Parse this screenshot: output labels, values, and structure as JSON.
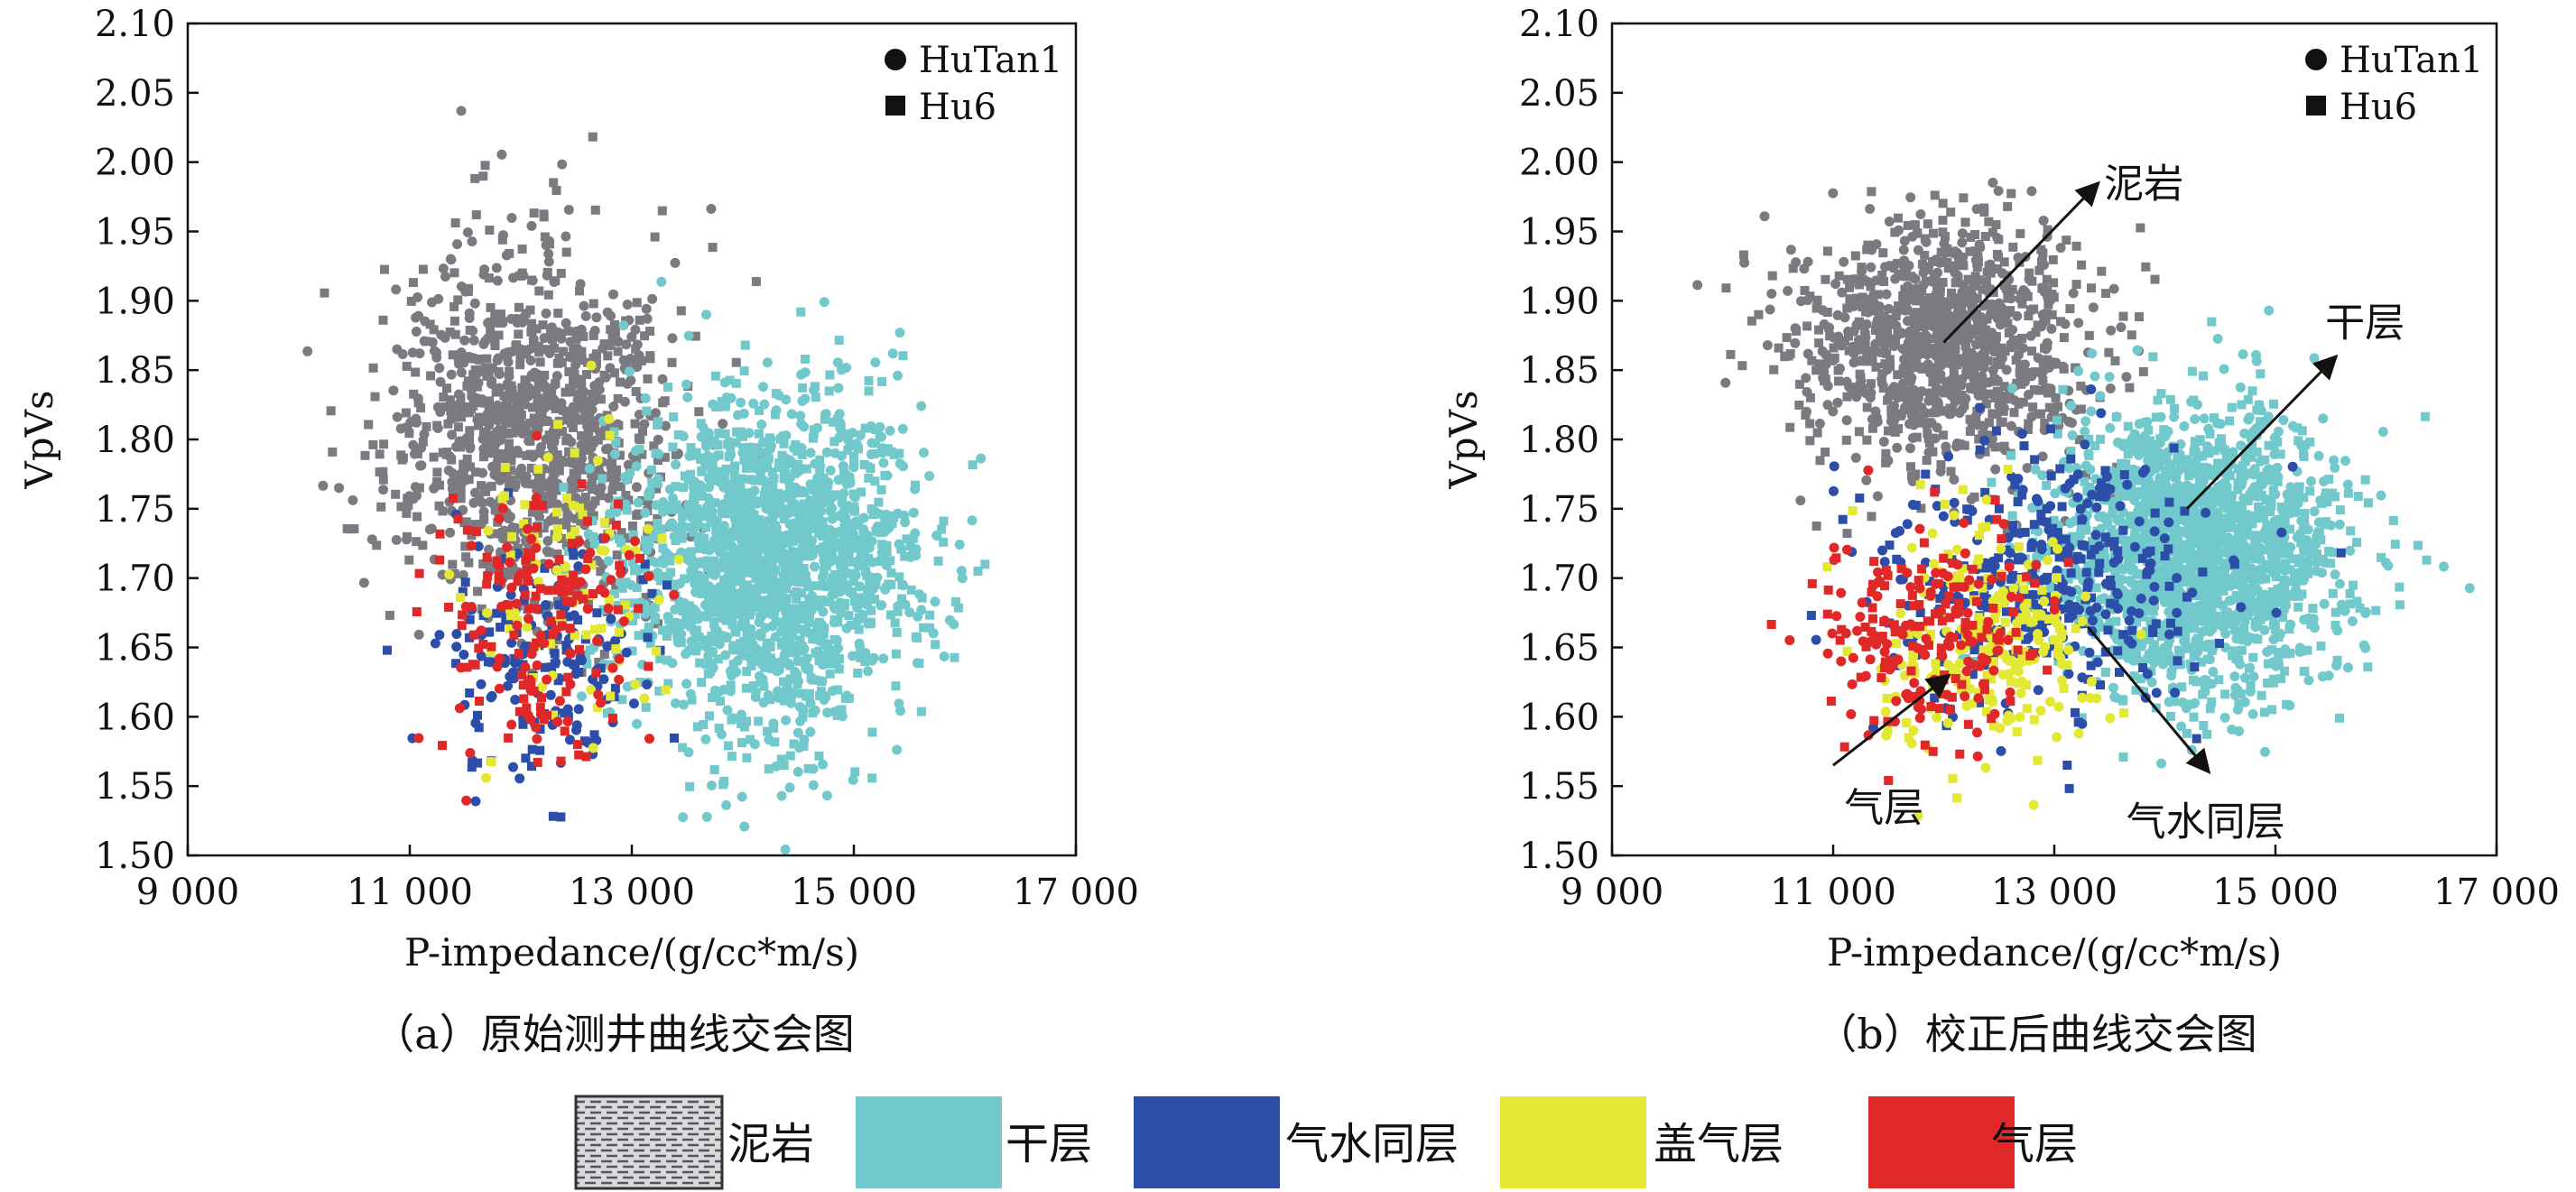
{
  "chart_data": [
    {
      "type": "scatter",
      "panel": "a",
      "caption": "（a）原始测井曲线交会图",
      "xlabel": "P-impedance/(g/cc*m/s)",
      "ylabel": "VpVs",
      "xlim": [
        9000,
        17000
      ],
      "ylim": [
        1.5,
        2.1
      ],
      "xticks": [
        "9 000",
        "11 000",
        "13 000",
        "15 000",
        "17 000"
      ],
      "yticks": [
        "1.50",
        "1.55",
        "1.60",
        "1.65",
        "1.70",
        "1.75",
        "1.80",
        "1.85",
        "1.90",
        "1.95",
        "2.00",
        "2.05",
        "2.10"
      ],
      "grid": false,
      "marker_legend": [
        "HuTan1",
        "Hu6"
      ],
      "marker_legend_position": "top-right",
      "clusters": [
        {
          "class": "泥岩",
          "color": "#7a7a80",
          "center": [
            12100,
            1.81
          ],
          "spread": [
            650,
            0.065
          ],
          "count": 1100
        },
        {
          "class": "干层",
          "color": "#72c9cc",
          "center": [
            14250,
            1.71
          ],
          "spread": [
            650,
            0.06
          ],
          "count": 1800
        },
        {
          "class": "气水同层",
          "color": "#2c4ea8",
          "center": [
            12200,
            1.645
          ],
          "spread": [
            450,
            0.04
          ],
          "count": 180
        },
        {
          "class": "盖气层",
          "color": "#e3e832",
          "center": [
            12400,
            1.69
          ],
          "spread": [
            420,
            0.05
          ],
          "count": 90
        },
        {
          "class": "气层",
          "color": "#e02828",
          "center": [
            12150,
            1.67
          ],
          "spread": [
            480,
            0.05
          ],
          "count": 180
        }
      ],
      "annotations": []
    },
    {
      "type": "scatter",
      "panel": "b",
      "caption": "（b）校正后曲线交会图",
      "xlabel": "P-impedance/(g/cc*m/s)",
      "ylabel": "VpVs",
      "xlim": [
        9000,
        17000
      ],
      "ylim": [
        1.5,
        2.1
      ],
      "xticks": [
        "9 000",
        "11 000",
        "13 000",
        "15 000",
        "17 000"
      ],
      "yticks": [
        "1.50",
        "1.55",
        "1.60",
        "1.65",
        "1.70",
        "1.75",
        "1.80",
        "1.85",
        "1.90",
        "1.95",
        "2.00",
        "2.05",
        "2.10"
      ],
      "grid": false,
      "marker_legend": [
        "HuTan1",
        "Hu6"
      ],
      "marker_legend_position": "top-right",
      "clusters": [
        {
          "class": "泥岩",
          "color": "#7a7a80",
          "center": [
            12000,
            1.87
          ],
          "spread": [
            650,
            0.045
          ],
          "count": 1100
        },
        {
          "class": "干层",
          "color": "#72c9cc",
          "center": [
            14300,
            1.72
          ],
          "spread": [
            650,
            0.05
          ],
          "count": 1800
        },
        {
          "class": "气水同层",
          "color": "#2c4ea8",
          "center": [
            12900,
            1.695
          ],
          "spread": [
            700,
            0.05
          ],
          "count": 380
        },
        {
          "class": "盖气层",
          "color": "#e3e832",
          "center": [
            12400,
            1.655
          ],
          "spread": [
            500,
            0.04
          ],
          "count": 230
        },
        {
          "class": "气层",
          "color": "#e02828",
          "center": [
            11900,
            1.665
          ],
          "spread": [
            480,
            0.04
          ],
          "count": 220
        }
      ],
      "annotations": [
        {
          "text": "泥岩",
          "arrow_from": [
            12000,
            1.87
          ],
          "arrow_to": [
            13400,
            1.985
          ],
          "text_at": [
            13450,
            1.985
          ]
        },
        {
          "text": "干层",
          "arrow_from": [
            14200,
            1.75
          ],
          "arrow_to": [
            15550,
            1.86
          ],
          "text_at": [
            15450,
            1.885
          ]
        },
        {
          "text": "气水同层",
          "arrow_from": [
            13300,
            1.665
          ],
          "arrow_to": [
            14400,
            1.56
          ],
          "text_at": [
            13650,
            1.525
          ]
        },
        {
          "text": "气层",
          "arrow_from": [
            11000,
            1.565
          ],
          "arrow_to": [
            12050,
            1.63
          ],
          "text_at": [
            11100,
            1.535
          ]
        }
      ]
    }
  ],
  "class_legend": [
    {
      "label": "泥岩",
      "color": "#a9abae",
      "pattern": "hatch"
    },
    {
      "label": "干层",
      "color": "#72c9cc",
      "pattern": "solid"
    },
    {
      "label": "气水同层",
      "color": "#2c4ea8",
      "pattern": "solid"
    },
    {
      "label": "盖气层",
      "color": "#e3e832",
      "pattern": "solid"
    },
    {
      "label": "气层",
      "color": "#e02828",
      "pattern": "solid"
    }
  ]
}
